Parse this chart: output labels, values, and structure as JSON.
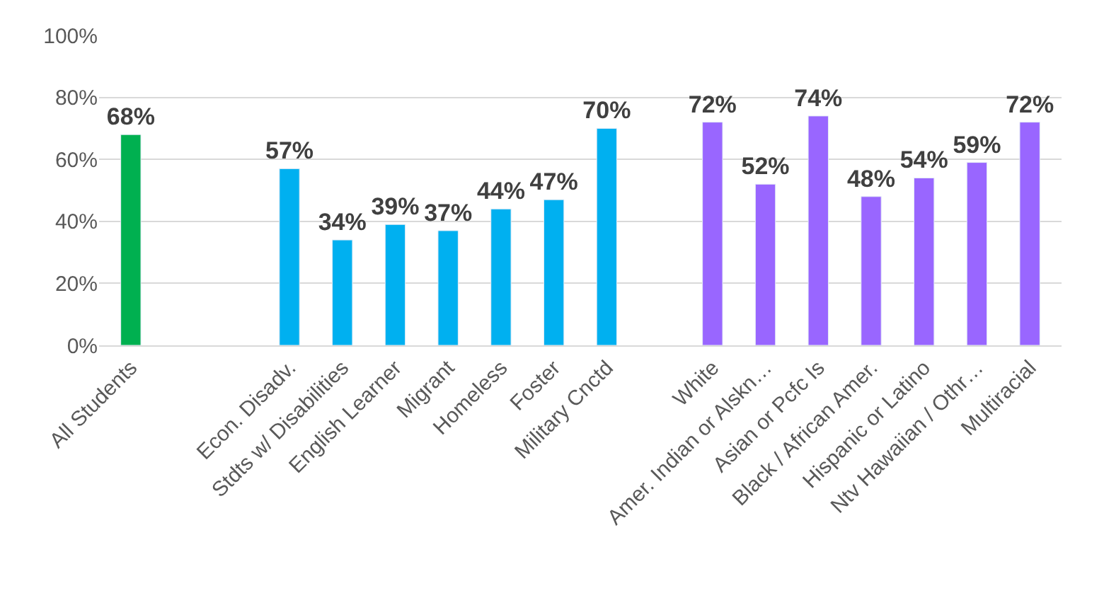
{
  "chart_data": {
    "type": "bar",
    "categories": [
      "All Students",
      null,
      null,
      "Econ. Disadv.",
      "Stdts w/ Disabilities",
      "English Learner",
      "Migrant",
      "Homeless",
      "Foster",
      "Military Cnctd",
      null,
      "White",
      "Amer. Indian or Alskn…",
      "Asian or Pcfc Is",
      "Black / African Amer.",
      "Hispanic or Latino",
      "Ntv Hawaiian / Othr…",
      "Multiracial"
    ],
    "values": [
      68,
      null,
      null,
      57,
      34,
      39,
      37,
      44,
      47,
      70,
      null,
      72,
      52,
      74,
      48,
      54,
      59,
      72
    ],
    "colors": [
      "#00b050",
      null,
      null,
      "#00b0f0",
      "#00b0f0",
      "#00b0f0",
      "#00b0f0",
      "#00b0f0",
      "#00b0f0",
      "#00b0f0",
      null,
      "#9966ff",
      "#9966ff",
      "#9966ff",
      "#9966ff",
      "#9966ff",
      "#9966ff",
      "#9966ff"
    ],
    "value_labels": [
      "68%",
      null,
      null,
      "57%",
      "34%",
      "39%",
      "37%",
      "44%",
      "47%",
      "70%",
      null,
      "72%",
      "52%",
      "74%",
      "48%",
      "54%",
      "59%",
      "72%"
    ],
    "ylim": [
      0,
      100
    ],
    "yticks": [
      {
        "value": 0,
        "label": "0%"
      },
      {
        "value": 20,
        "label": "20%"
      },
      {
        "value": 40,
        "label": "40%"
      },
      {
        "value": 60,
        "label": "60%"
      },
      {
        "value": 80,
        "label": "80%"
      },
      {
        "value": 100,
        "label": "100%"
      }
    ],
    "grid": "y"
  }
}
